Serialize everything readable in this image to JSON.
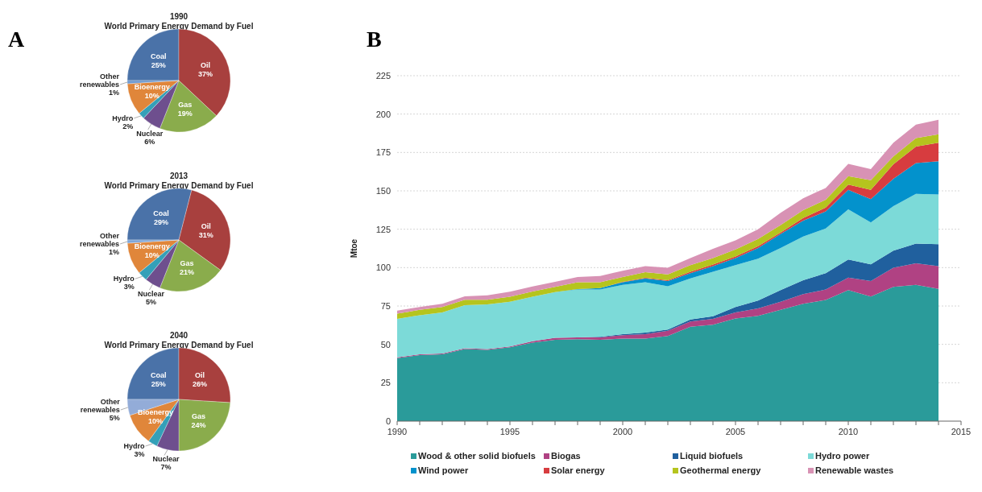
{
  "chart_data": [
    {
      "type": "pie",
      "title": "1990",
      "subtitle": "World Primary Energy Demand by Fuel",
      "annotations": [
        "A"
      ],
      "categories": [
        "Coal",
        "Oil",
        "Gas",
        "Nuclear",
        "Hydro",
        "Bioenergy",
        "Other renewables"
      ],
      "values": [
        25,
        37,
        19,
        6,
        2,
        10,
        1
      ],
      "value_labels": [
        "25%",
        "37%",
        "19%",
        "6%",
        "2%",
        "10%",
        "1%"
      ],
      "colors": [
        "#4a72a8",
        "#a8403e",
        "#8aac4c",
        "#6e4f8e",
        "#34a0b8",
        "#e0863a",
        "#6f9ad0"
      ]
    },
    {
      "type": "pie",
      "title": "2013",
      "subtitle": "World Primary Energy Demand by Fuel",
      "categories": [
        "Coal",
        "Oil",
        "Gas",
        "Nuclear",
        "Hydro",
        "Bioenergy",
        "Other renewables"
      ],
      "values": [
        29,
        31,
        21,
        5,
        3,
        10,
        1
      ],
      "value_labels": [
        "29%",
        "31%",
        "21%",
        "5%",
        "3%",
        "10%",
        "1%"
      ],
      "colors": [
        "#4a72a8",
        "#a8403e",
        "#8aac4c",
        "#6e4f8e",
        "#34a0b8",
        "#e0863a",
        "#7fa6d8"
      ]
    },
    {
      "type": "pie",
      "title": "2040",
      "subtitle": "World Primary Energy Demand by Fuel",
      "categories": [
        "Coal",
        "Oil",
        "Gas",
        "Nuclear",
        "Hydro",
        "Bioenergy",
        "Other renewables"
      ],
      "values": [
        25,
        26,
        24,
        7,
        3,
        10,
        5
      ],
      "value_labels": [
        "25%",
        "26%",
        "24%",
        "7%",
        "3%",
        "10%",
        "5%"
      ],
      "colors": [
        "#4a72a8",
        "#a8403e",
        "#8aac4c",
        "#6e4f8e",
        "#34a0b8",
        "#e0863a",
        "#93acd8"
      ]
    },
    {
      "type": "area",
      "stacked": true,
      "annotations": [
        "B"
      ],
      "ylabel": "Mtoe",
      "grid": "y",
      "legend": "bottom",
      "x": [
        1990,
        1991,
        1992,
        1993,
        1994,
        1995,
        1996,
        1997,
        1998,
        1999,
        2000,
        2001,
        2002,
        2003,
        2004,
        2005,
        2006,
        2007,
        2008,
        2009,
        2010,
        2011,
        2012,
        2013,
        2014
      ],
      "xlim": [
        1990,
        2015
      ],
      "xticks": [
        1990,
        {
          "value": 1991,
          "label": null
        },
        {
          "value": 1992,
          "label": null
        },
        {
          "value": 1993,
          "label": null
        },
        {
          "value": 1994,
          "label": null
        },
        1995,
        {
          "value": 1996,
          "label": null
        },
        {
          "value": 1997,
          "label": null
        },
        {
          "value": 1998,
          "label": null
        },
        {
          "value": 1999,
          "label": null
        },
        2000,
        {
          "value": 2001,
          "label": null
        },
        {
          "value": 2002,
          "label": null
        },
        {
          "value": 2003,
          "label": null
        },
        {
          "value": 2004,
          "label": null
        },
        2005,
        {
          "value": 2006,
          "label": null
        },
        {
          "value": 2007,
          "label": null
        },
        {
          "value": 2008,
          "label": null
        },
        {
          "value": 2009,
          "label": null
        },
        2010,
        {
          "value": 2011,
          "label": null
        },
        {
          "value": 2012,
          "label": null
        },
        {
          "value": 2013,
          "label": null
        },
        {
          "value": 2014,
          "label": null
        },
        2015
      ],
      "ylim": [
        0,
        225
      ],
      "yticks": [
        0,
        25,
        50,
        75,
        100,
        125,
        150,
        175,
        200,
        225
      ],
      "series": [
        {
          "name": "Wood & other solid biofuels",
          "color": "#2a9b9a",
          "values": [
            41,
            43,
            43.5,
            47,
            46.4,
            48.1,
            51.2,
            53,
            53.4,
            53,
            53.8,
            53.8,
            55.5,
            61.5,
            62.8,
            66.9,
            68.6,
            72.5,
            76.5,
            78.9,
            85.4,
            81.1,
            87.4,
            88.8,
            86.2
          ]
        },
        {
          "name": "Biogas",
          "color": "#b04283",
          "values": [
            0.5,
            0.5,
            0.5,
            0.5,
            0.5,
            0.6,
            0.8,
            1.3,
            1.2,
            1.6,
            2.2,
            2.9,
            3.4,
            3.4,
            3.8,
            3.9,
            4.8,
            5.2,
            6.3,
            6.8,
            8.1,
            10.2,
            12.5,
            14,
            14.8
          ]
        },
        {
          "name": "Liquid biofuels",
          "color": "#20609e",
          "values": [
            0,
            0,
            0,
            0,
            0,
            0,
            0,
            0,
            0,
            0.4,
            0.7,
            1,
            0.8,
            1.3,
            1.7,
            3.5,
            5.1,
            7.7,
            9,
            10.7,
            11.8,
            10.8,
            11.1,
            12.8,
            14.2
          ]
        },
        {
          "name": "Hydro power",
          "color": "#7cdad8",
          "values": [
            25.1,
            25.5,
            26.8,
            28,
            29.1,
            29,
            29,
            29.7,
            31.1,
            30.7,
            32.1,
            32.8,
            28.2,
            26.8,
            29,
            27.3,
            27.3,
            27.3,
            28.5,
            29.1,
            32.6,
            27.3,
            29,
            32.4,
            32.5
          ]
        },
        {
          "name": "Wind power",
          "color": "#0392cc",
          "values": [
            0,
            0,
            0,
            0,
            0,
            0,
            0,
            0,
            0.3,
            1,
            1.7,
            2.5,
            3.4,
            3.4,
            3.7,
            4.6,
            6.9,
            9.3,
            10.3,
            11.1,
            12.7,
            15.2,
            17.9,
            20.1,
            21.6
          ]
        },
        {
          "name": "Solar energy",
          "color": "#d73c3f",
          "values": [
            0,
            0,
            0,
            0,
            0,
            0,
            0,
            0,
            0,
            0,
            0.3,
            0.4,
            0.5,
            0.9,
            1,
            1,
            1.2,
            0.9,
            1.7,
            2.5,
            3.4,
            6,
            9.4,
            10.8,
            12
          ]
        },
        {
          "name": "Geothermal energy",
          "color": "#b5c41e",
          "values": [
            3.4,
            3.5,
            3.5,
            3.5,
            3,
            3.3,
            3.5,
            3.4,
            4.5,
            3.8,
            3.1,
            3.6,
            3.8,
            4.3,
            4.2,
            4.6,
            4.7,
            4.8,
            5.1,
            5.1,
            5.6,
            6.4,
            5.1,
            5.5,
            5.6
          ]
        },
        {
          "name": "Renewable wastes",
          "color": "#d892b4",
          "values": [
            2,
            1.8,
            2.2,
            2.3,
            3,
            3.3,
            3.2,
            3.4,
            3.4,
            4.1,
            4.1,
            4,
            4.3,
            4.6,
            6,
            6,
            6.4,
            8,
            7.7,
            7.7,
            8,
            7.2,
            8.9,
            8.8,
            9.4
          ]
        }
      ]
    }
  ]
}
